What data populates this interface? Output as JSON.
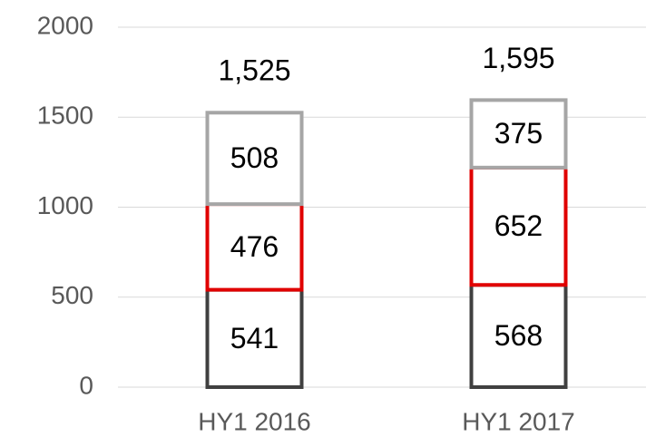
{
  "chart_data": {
    "type": "stacked_bar",
    "categories": [
      "HY1 2016",
      "HY1 2017"
    ],
    "series": [
      {
        "color": "#404040",
        "values": [
          541,
          568
        ]
      },
      {
        "color": "#e00000",
        "values": [
          476,
          652
        ]
      },
      {
        "color": "#a6a6a6",
        "values": [
          508,
          375
        ]
      }
    ],
    "totals": {
      "values": [
        1525,
        1595
      ],
      "value_labels": [
        "1,525",
        "1,595"
      ]
    },
    "ylim": [
      0,
      2000
    ],
    "yticks": [
      0,
      500,
      1000,
      1500,
      2000
    ],
    "grid": true
  }
}
